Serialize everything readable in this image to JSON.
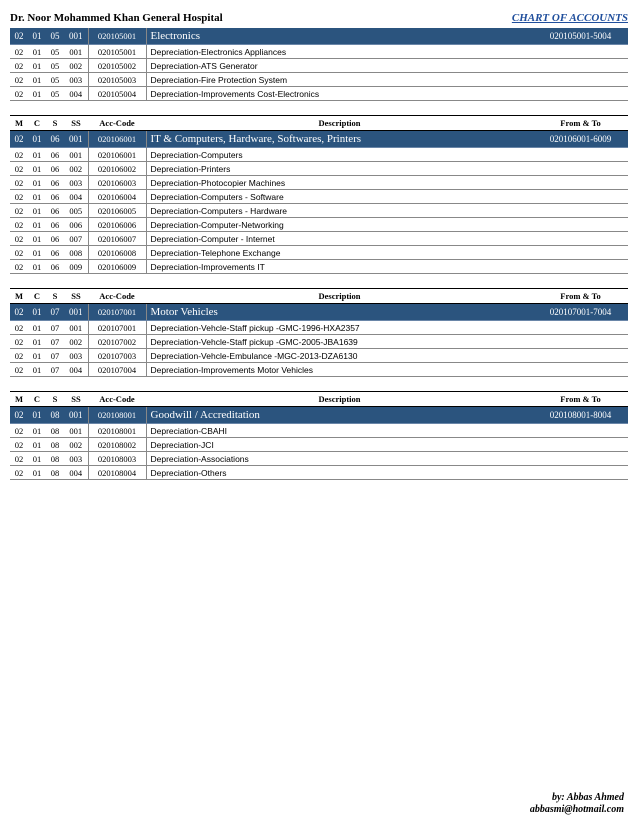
{
  "header": {
    "title": "Dr. Noor Mohammed Khan General Hospital",
    "subtitle": "CHART OF ACCOUNTS"
  },
  "cols": {
    "m": "M",
    "c": "C",
    "s": "S",
    "ss": "SS",
    "acc": "Acc-Code",
    "desc": "Description",
    "ft": "From & To"
  },
  "sections": [
    {
      "header_row": false,
      "group": {
        "m": "02",
        "c": "01",
        "s": "05",
        "ss": "001",
        "acc": "020105001",
        "desc": "Electronics",
        "ft": "020105001-5004"
      },
      "rows": [
        {
          "m": "02",
          "c": "01",
          "s": "05",
          "ss": "001",
          "acc": "020105001",
          "desc": "Depreciation-Electronics Appliances"
        },
        {
          "m": "02",
          "c": "01",
          "s": "05",
          "ss": "002",
          "acc": "020105002",
          "desc": "Depreciation-ATS Generator"
        },
        {
          "m": "02",
          "c": "01",
          "s": "05",
          "ss": "003",
          "acc": "020105003",
          "desc": "Depreciation-Fire Protection System"
        },
        {
          "m": "02",
          "c": "01",
          "s": "05",
          "ss": "004",
          "acc": "020105004",
          "desc": "Depreciation-Improvements Cost-Electronics"
        }
      ]
    },
    {
      "header_row": true,
      "group": {
        "m": "02",
        "c": "01",
        "s": "06",
        "ss": "001",
        "acc": "020106001",
        "desc": "IT & Computers, Hardware, Softwares, Printers",
        "ft": "020106001-6009"
      },
      "rows": [
        {
          "m": "02",
          "c": "01",
          "s": "06",
          "ss": "001",
          "acc": "020106001",
          "desc": "Depreciation-Computers"
        },
        {
          "m": "02",
          "c": "01",
          "s": "06",
          "ss": "002",
          "acc": "020106002",
          "desc": "Depreciation-Printers"
        },
        {
          "m": "02",
          "c": "01",
          "s": "06",
          "ss": "003",
          "acc": "020106003",
          "desc": "Depreciation-Photocopier Machines"
        },
        {
          "m": "02",
          "c": "01",
          "s": "06",
          "ss": "004",
          "acc": "020106004",
          "desc": "Depreciation-Computers - Software"
        },
        {
          "m": "02",
          "c": "01",
          "s": "06",
          "ss": "005",
          "acc": "020106005",
          "desc": "Depreciation-Computers - Hardware"
        },
        {
          "m": "02",
          "c": "01",
          "s": "06",
          "ss": "006",
          "acc": "020106006",
          "desc": "Depreciation-Computer-Networking"
        },
        {
          "m": "02",
          "c": "01",
          "s": "06",
          "ss": "007",
          "acc": "020106007",
          "desc": "Depreciation-Computer - Internet"
        },
        {
          "m": "02",
          "c": "01",
          "s": "06",
          "ss": "008",
          "acc": "020106008",
          "desc": "Depreciation-Telephone Exchange"
        },
        {
          "m": "02",
          "c": "01",
          "s": "06",
          "ss": "009",
          "acc": "020106009",
          "desc": "Depreciation-Improvements IT"
        }
      ]
    },
    {
      "header_row": true,
      "group": {
        "m": "02",
        "c": "01",
        "s": "07",
        "ss": "001",
        "acc": "020107001",
        "desc": "Motor Vehicles",
        "ft": "020107001-7004"
      },
      "rows": [
        {
          "m": "02",
          "c": "01",
          "s": "07",
          "ss": "001",
          "acc": "020107001",
          "desc": "Depreciation-Vehcle-Staff pickup -GMC-1996-HXA2357"
        },
        {
          "m": "02",
          "c": "01",
          "s": "07",
          "ss": "002",
          "acc": "020107002",
          "desc": "Depreciation-Vehcle-Staff pickup -GMC-2005-JBA1639"
        },
        {
          "m": "02",
          "c": "01",
          "s": "07",
          "ss": "003",
          "acc": "020107003",
          "desc": "Depreciation-Vehcle-Embulance -MGC-2013-DZA6130"
        },
        {
          "m": "02",
          "c": "01",
          "s": "07",
          "ss": "004",
          "acc": "020107004",
          "desc": "Depreciation-Improvements Motor Vehicles"
        }
      ]
    },
    {
      "header_row": true,
      "group": {
        "m": "02",
        "c": "01",
        "s": "08",
        "ss": "001",
        "acc": "020108001",
        "desc": "Goodwill / Accreditation",
        "ft": "020108001-8004"
      },
      "rows": [
        {
          "m": "02",
          "c": "01",
          "s": "08",
          "ss": "001",
          "acc": "020108001",
          "desc": "Depreciation-CBAHI"
        },
        {
          "m": "02",
          "c": "01",
          "s": "08",
          "ss": "002",
          "acc": "020108002",
          "desc": "Depreciation-JCI"
        },
        {
          "m": "02",
          "c": "01",
          "s": "08",
          "ss": "003",
          "acc": "020108003",
          "desc": "Depreciation-Associations"
        },
        {
          "m": "02",
          "c": "01",
          "s": "08",
          "ss": "004",
          "acc": "020108004",
          "desc": "Depreciation-Others"
        }
      ]
    }
  ],
  "footer": {
    "by": "by: Abbas Ahmed",
    "email": "abbasmi@hotmail.com"
  },
  "style": {
    "group_bg": "#2b547e",
    "group_fg": "#ffffff",
    "border_color": "#888888",
    "link_color": "#1f4e9c"
  }
}
